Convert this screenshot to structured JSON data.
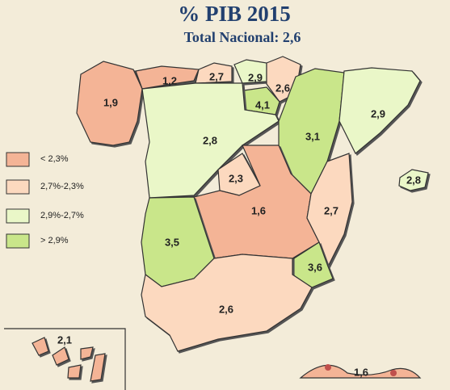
{
  "title": "% PIB 2015",
  "subtitle": "Total Nacional: 2,6",
  "legend": [
    {
      "label": "< 2,3%",
      "color": "#f4b496"
    },
    {
      "label": "2,7%-2,3%",
      "color": "#fcd9bf"
    },
    {
      "label": "2,9%-2,7%",
      "color": "#eaf7c8"
    },
    {
      "label": "> 2,9%",
      "color": "#c9e68a"
    }
  ],
  "regions": [
    {
      "label": "1,9",
      "color": "#f4b496"
    },
    {
      "label": "1,2",
      "color": "#f4b496"
    },
    {
      "label": "2,7",
      "color": "#fcd9bf"
    },
    {
      "label": "2,9",
      "color": "#eaf7c8"
    },
    {
      "label": "2,6",
      "color": "#fcd9bf"
    },
    {
      "label": "4,1",
      "color": "#c9e68a"
    },
    {
      "label": "2,8",
      "color": "#eaf7c8"
    },
    {
      "label": "3,1",
      "color": "#c9e68a"
    },
    {
      "label": "2,9",
      "color": "#eaf7c8"
    },
    {
      "label": "2,3",
      "color": "#fcd9bf"
    },
    {
      "label": "1,6",
      "color": "#f4b496"
    },
    {
      "label": "2,7",
      "color": "#fcd9bf"
    },
    {
      "label": "3,5",
      "color": "#c9e68a"
    },
    {
      "label": "3,6",
      "color": "#c9e68a"
    },
    {
      "label": "2,6",
      "color": "#fcd9bf"
    },
    {
      "label": "2,8",
      "color": "#eaf7c8"
    },
    {
      "label": "2,1",
      "color": "#f4b496"
    },
    {
      "label": "1,6",
      "color": "#f4b496"
    }
  ]
}
